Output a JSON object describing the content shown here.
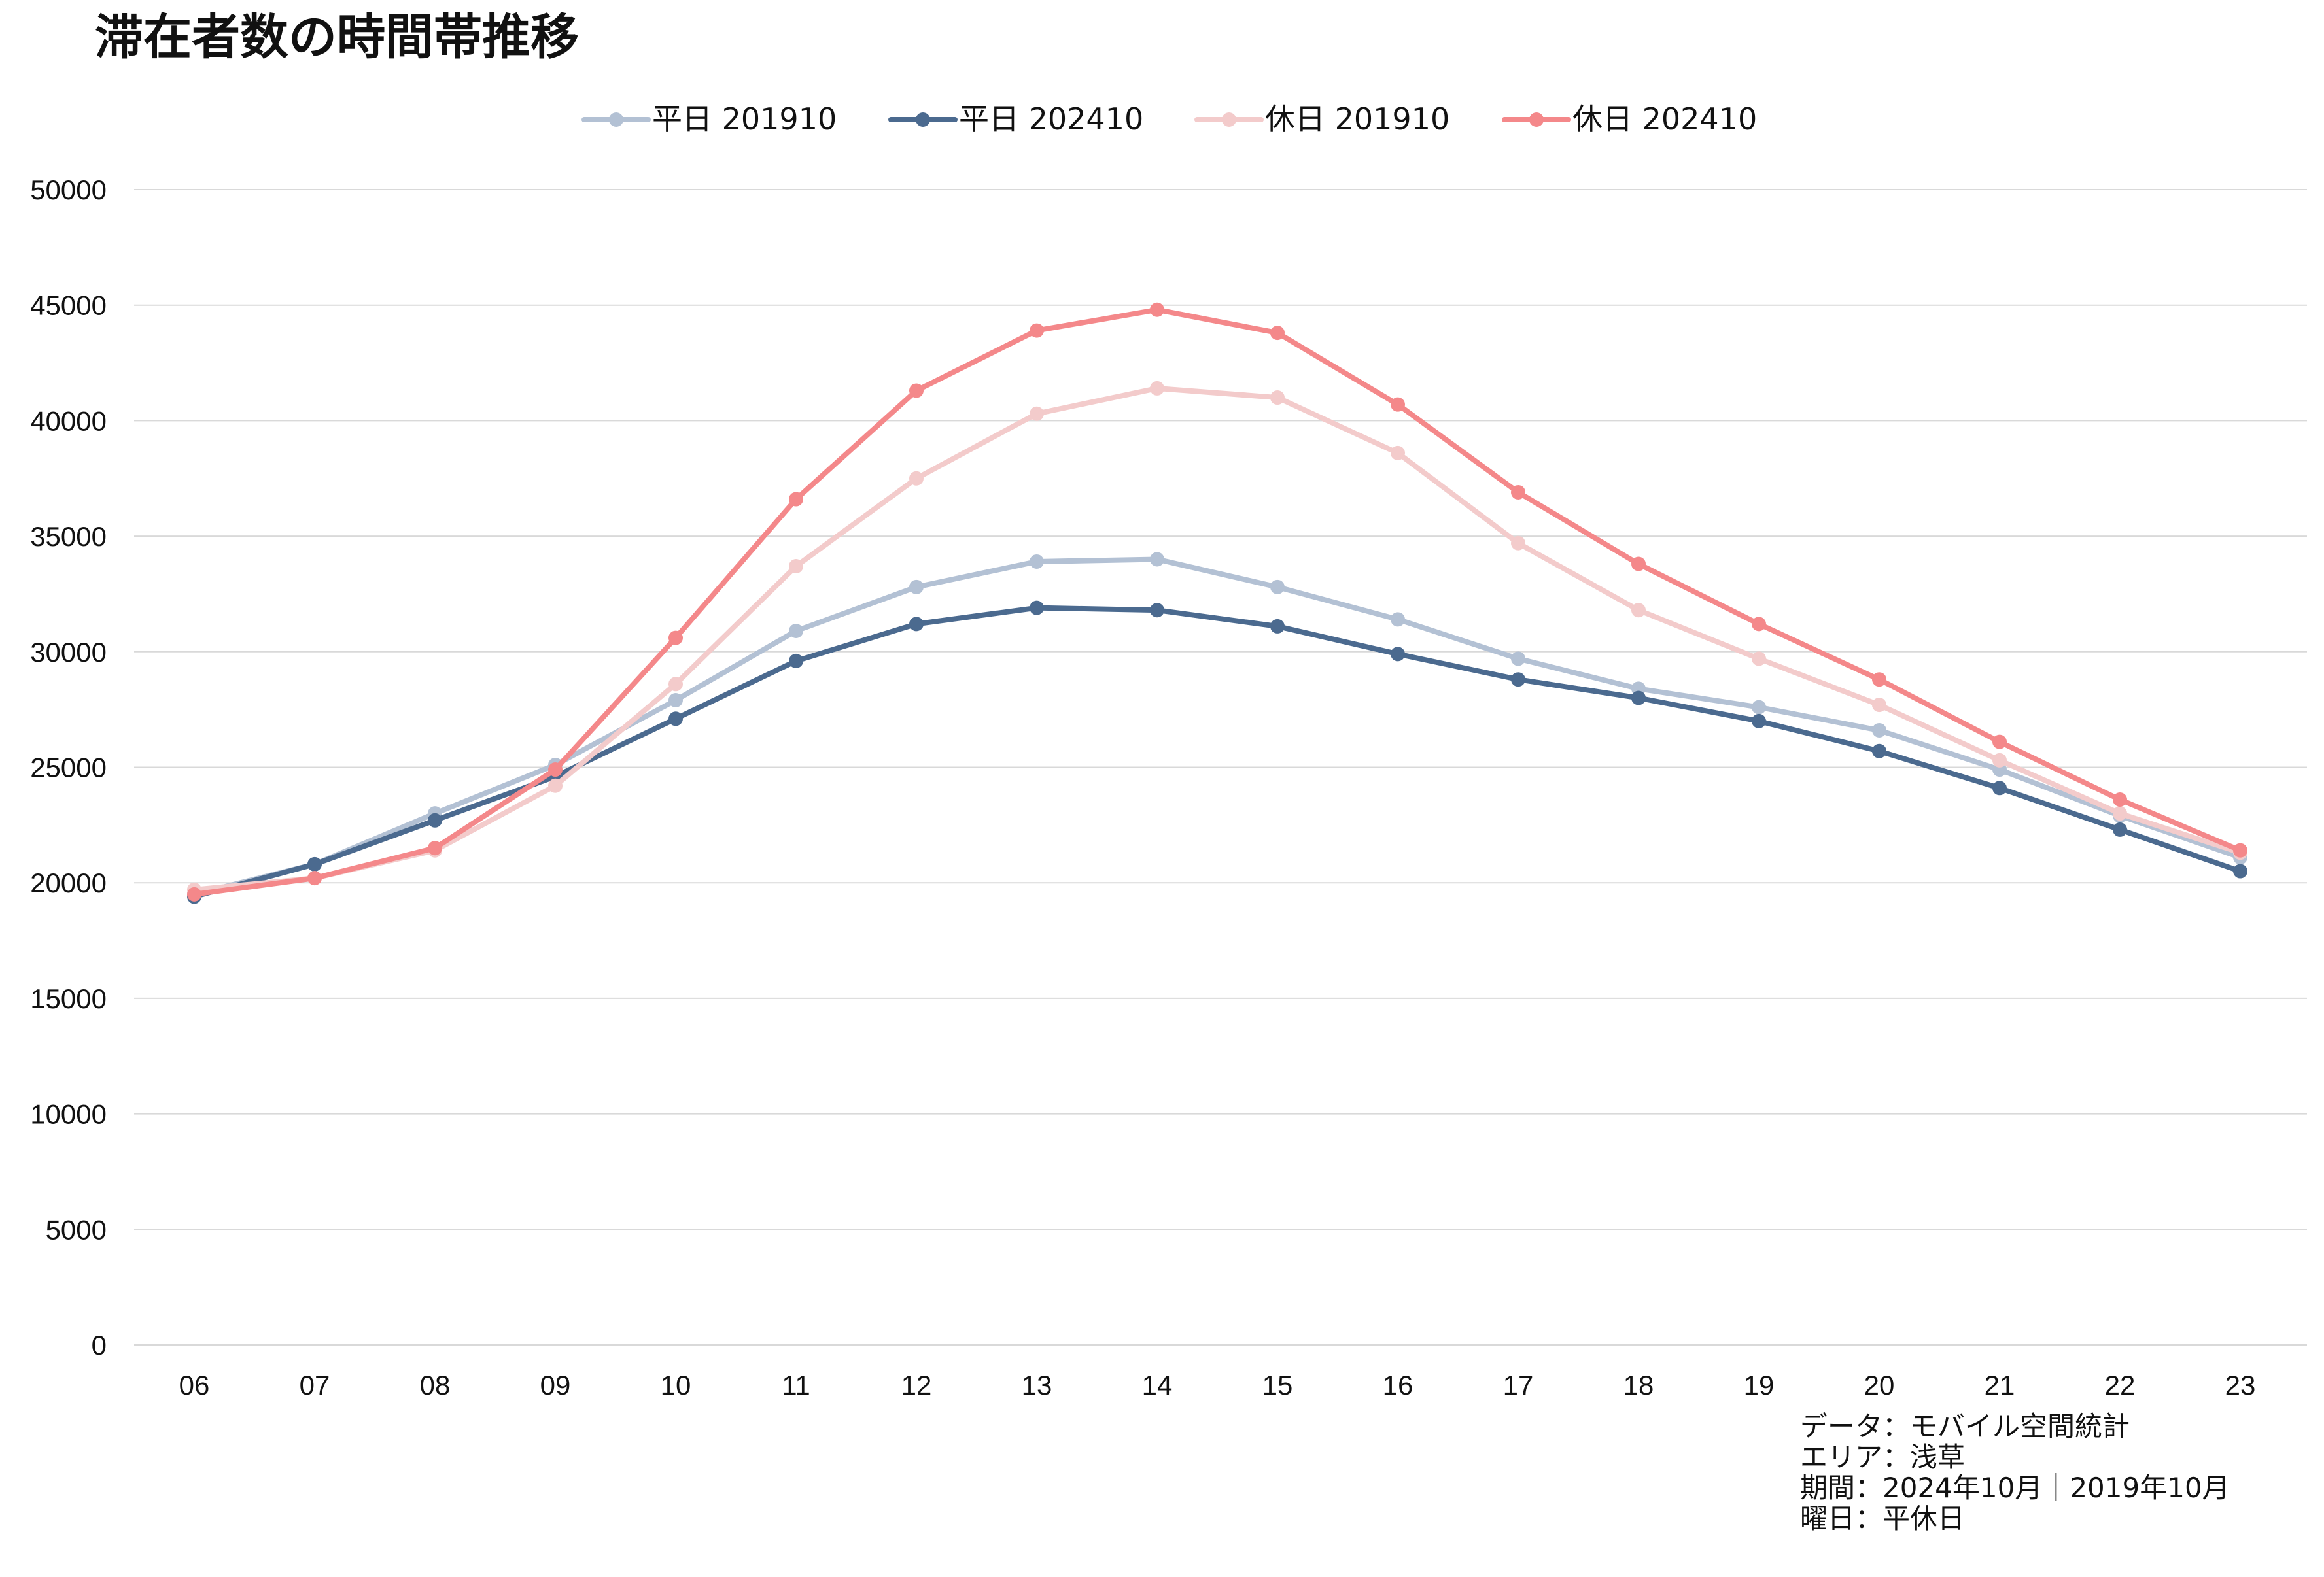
{
  "chart_data": {
    "type": "line",
    "title": "滞在者数の時間帯推移",
    "categories": [
      "06",
      "07",
      "08",
      "09",
      "10",
      "11",
      "12",
      "13",
      "14",
      "15",
      "16",
      "17",
      "18",
      "19",
      "20",
      "21",
      "22",
      "23"
    ],
    "ylim": [
      0,
      50000
    ],
    "yticks": [
      0,
      5000,
      10000,
      15000,
      20000,
      25000,
      30000,
      35000,
      40000,
      45000,
      50000
    ],
    "grid": "horizontal",
    "legend_position": "top-center",
    "series": [
      {
        "name": "平日 201910",
        "color": "#b3c1d4",
        "values": [
          19500,
          20800,
          23000,
          25100,
          27900,
          30900,
          32800,
          33900,
          34000,
          32800,
          31400,
          29700,
          28400,
          27600,
          26600,
          24900,
          22900,
          21100
        ]
      },
      {
        "name": "平日 202410",
        "color": "#4b6a8f",
        "values": [
          19400,
          20800,
          22700,
          24600,
          27100,
          29600,
          31200,
          31900,
          31800,
          31100,
          29900,
          28800,
          28000,
          27000,
          25700,
          24100,
          22300,
          20500
        ]
      },
      {
        "name": "休日 201910",
        "color": "#f3cbcb",
        "values": [
          19700,
          20200,
          21400,
          24200,
          28600,
          33700,
          37500,
          40300,
          41400,
          41000,
          38600,
          34700,
          31800,
          29700,
          27700,
          25300,
          23000,
          21300
        ]
      },
      {
        "name": "休日 202410",
        "color": "#f4888a",
        "values": [
          19500,
          20200,
          21500,
          24900,
          30600,
          36600,
          41300,
          43900,
          44800,
          43800,
          40700,
          36900,
          33800,
          31200,
          28800,
          26100,
          23600,
          21400
        ]
      }
    ]
  },
  "notes": [
    "データ：モバイル空間統計",
    "エリア：浅草",
    "期間：2024年10月｜2019年10月",
    "曜日：平休日"
  ]
}
